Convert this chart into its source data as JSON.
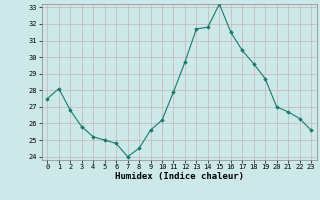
{
  "x": [
    0,
    1,
    2,
    3,
    4,
    5,
    6,
    7,
    8,
    9,
    10,
    11,
    12,
    13,
    14,
    15,
    16,
    17,
    18,
    19,
    20,
    21,
    22,
    23
  ],
  "y": [
    27.5,
    28.1,
    26.8,
    25.8,
    25.2,
    25.0,
    24.8,
    24.0,
    24.5,
    25.6,
    26.2,
    27.9,
    29.7,
    31.7,
    31.8,
    33.2,
    31.5,
    30.4,
    29.6,
    28.7,
    27.0,
    26.7,
    26.3,
    25.6
  ],
  "line_color": "#1a7a6e",
  "marker_color": "#1a7a6e",
  "bg_color": "#cce8e8",
  "grid_color_major": "#b0b0b0",
  "grid_color_minor": "#d8c8c8",
  "xlabel": "Humidex (Indice chaleur)",
  "ylim_min": 24,
  "ylim_max": 33,
  "xlim_min": -0.5,
  "xlim_max": 23.5,
  "yticks": [
    24,
    25,
    26,
    27,
    28,
    29,
    30,
    31,
    32,
    33
  ],
  "xticks": [
    0,
    1,
    2,
    3,
    4,
    5,
    6,
    7,
    8,
    9,
    10,
    11,
    12,
    13,
    14,
    15,
    16,
    17,
    18,
    19,
    20,
    21,
    22,
    23
  ]
}
